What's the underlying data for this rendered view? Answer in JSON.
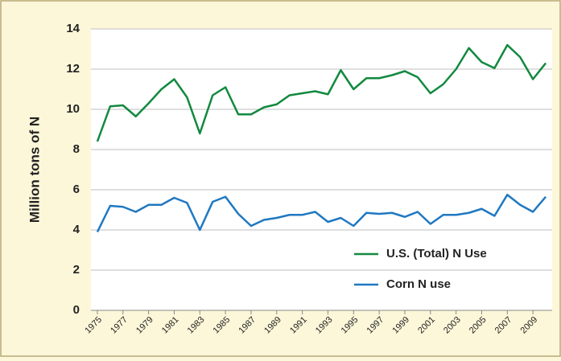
{
  "chart_data": {
    "type": "line",
    "y_label": "Million tons of N",
    "x": [
      1975,
      1976,
      1977,
      1978,
      1979,
      1980,
      1981,
      1982,
      1983,
      1984,
      1985,
      1986,
      1987,
      1988,
      1989,
      1990,
      1991,
      1992,
      1993,
      1994,
      1995,
      1996,
      1997,
      1998,
      1999,
      2000,
      2001,
      2002,
      2003,
      2004,
      2005,
      2006,
      2007,
      2008,
      2009,
      2010
    ],
    "series": [
      {
        "name": "U.S. (Total) N Use",
        "color": "#12893f",
        "values": [
          8.4,
          10.15,
          10.2,
          9.65,
          10.3,
          11.0,
          11.5,
          10.6,
          8.8,
          10.7,
          11.1,
          9.75,
          9.75,
          10.1,
          10.25,
          10.7,
          10.8,
          10.9,
          10.75,
          11.95,
          11.0,
          11.55,
          11.55,
          11.7,
          11.9,
          11.6,
          10.8,
          11.25,
          12.0,
          13.05,
          12.35,
          12.05,
          13.2,
          12.6,
          11.5,
          12.3
        ]
      },
      {
        "name": "Corn N use",
        "color": "#1f78c1",
        "values": [
          3.9,
          5.2,
          5.15,
          4.9,
          5.25,
          5.25,
          5.6,
          5.35,
          4.0,
          5.4,
          5.65,
          4.8,
          4.2,
          4.5,
          4.6,
          4.75,
          4.75,
          4.9,
          4.4,
          4.6,
          4.2,
          4.85,
          4.8,
          4.85,
          4.65,
          4.9,
          4.3,
          4.75,
          4.75,
          4.85,
          5.05,
          4.7,
          5.75,
          5.25,
          4.9,
          5.65
        ]
      }
    ],
    "xlim": [
      1974.5,
      2010.5
    ],
    "xticks": [
      1975,
      1977,
      1979,
      1981,
      1983,
      1985,
      1987,
      1989,
      1991,
      1993,
      1995,
      1997,
      1999,
      2001,
      2003,
      2005,
      2007,
      2009
    ],
    "ylim": [
      0,
      14
    ],
    "yticks": [
      0,
      2,
      4,
      6,
      8,
      10,
      12,
      14
    ],
    "grid": true,
    "legend": "lower right"
  }
}
